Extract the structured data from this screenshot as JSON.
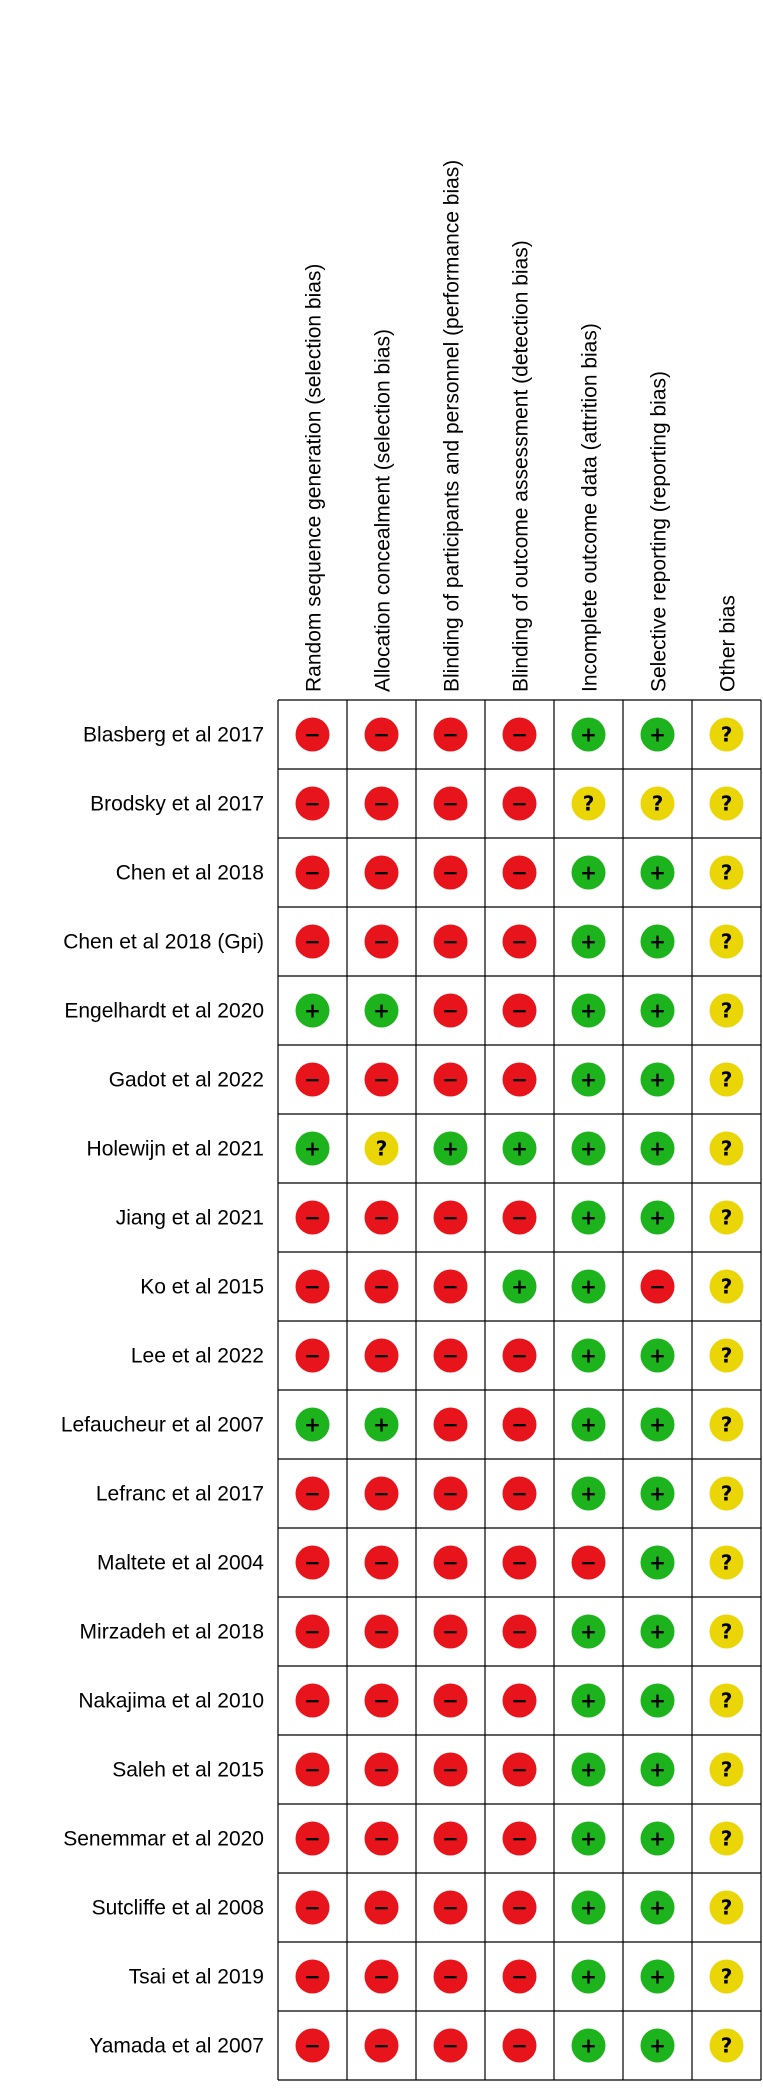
{
  "chart_data": {
    "type": "table",
    "title": "",
    "columns": [
      "Random sequence generation (selection bias)",
      "Allocation concealment (selection bias)",
      "Blinding of participants and personnel (performance bias)",
      "Blinding of outcome assessment (detection bias)",
      "Incomplete outcome data (attrition bias)",
      "Selective reporting (reporting bias)",
      "Other bias"
    ],
    "rows": [
      {
        "study": "Blasberg et al 2017",
        "ratings": [
          "high",
          "high",
          "high",
          "high",
          "low",
          "low",
          "unclear"
        ]
      },
      {
        "study": "Brodsky et al 2017",
        "ratings": [
          "high",
          "high",
          "high",
          "high",
          "unclear",
          "unclear",
          "unclear"
        ]
      },
      {
        "study": "Chen et al 2018",
        "ratings": [
          "high",
          "high",
          "high",
          "high",
          "low",
          "low",
          "unclear"
        ]
      },
      {
        "study": "Chen et al 2018 (Gpi)",
        "ratings": [
          "high",
          "high",
          "high",
          "high",
          "low",
          "low",
          "unclear"
        ]
      },
      {
        "study": "Engelhardt et al 2020",
        "ratings": [
          "low",
          "low",
          "high",
          "high",
          "low",
          "low",
          "unclear"
        ]
      },
      {
        "study": "Gadot et al 2022",
        "ratings": [
          "high",
          "high",
          "high",
          "high",
          "low",
          "low",
          "unclear"
        ]
      },
      {
        "study": "Holewijn et al 2021",
        "ratings": [
          "low",
          "unclear",
          "low",
          "low",
          "low",
          "low",
          "unclear"
        ]
      },
      {
        "study": "Jiang et al 2021",
        "ratings": [
          "high",
          "high",
          "high",
          "high",
          "low",
          "low",
          "unclear"
        ]
      },
      {
        "study": "Ko et al 2015",
        "ratings": [
          "high",
          "high",
          "high",
          "low",
          "low",
          "high",
          "unclear"
        ]
      },
      {
        "study": "Lee et al 2022",
        "ratings": [
          "high",
          "high",
          "high",
          "high",
          "low",
          "low",
          "unclear"
        ]
      },
      {
        "study": "Lefaucheur et al 2007",
        "ratings": [
          "low",
          "low",
          "high",
          "high",
          "low",
          "low",
          "unclear"
        ]
      },
      {
        "study": "Lefranc et al 2017",
        "ratings": [
          "high",
          "high",
          "high",
          "high",
          "low",
          "low",
          "unclear"
        ]
      },
      {
        "study": "Maltete et al 2004",
        "ratings": [
          "high",
          "high",
          "high",
          "high",
          "high",
          "low",
          "unclear"
        ]
      },
      {
        "study": "Mirzadeh et al 2018",
        "ratings": [
          "high",
          "high",
          "high",
          "high",
          "low",
          "low",
          "unclear"
        ]
      },
      {
        "study": "Nakajima et al 2010",
        "ratings": [
          "high",
          "high",
          "high",
          "high",
          "low",
          "low",
          "unclear"
        ]
      },
      {
        "study": "Saleh et al 2015",
        "ratings": [
          "high",
          "high",
          "high",
          "high",
          "low",
          "low",
          "unclear"
        ]
      },
      {
        "study": "Senemmar et al 2020",
        "ratings": [
          "high",
          "high",
          "high",
          "high",
          "low",
          "low",
          "unclear"
        ]
      },
      {
        "study": "Sutcliffe et al 2008",
        "ratings": [
          "high",
          "high",
          "high",
          "high",
          "low",
          "low",
          "unclear"
        ]
      },
      {
        "study": "Tsai et al 2019",
        "ratings": [
          "high",
          "high",
          "high",
          "high",
          "low",
          "low",
          "unclear"
        ]
      },
      {
        "study": "Yamada et al 2007",
        "ratings": [
          "high",
          "high",
          "high",
          "high",
          "low",
          "low",
          "unclear"
        ]
      }
    ],
    "legend": {
      "high": {
        "symbol": "−",
        "color": "#e8141b"
      },
      "low": {
        "symbol": "+",
        "color": "#1db31d"
      },
      "unclear": {
        "symbol": "?",
        "color": "#ead607"
      }
    }
  }
}
